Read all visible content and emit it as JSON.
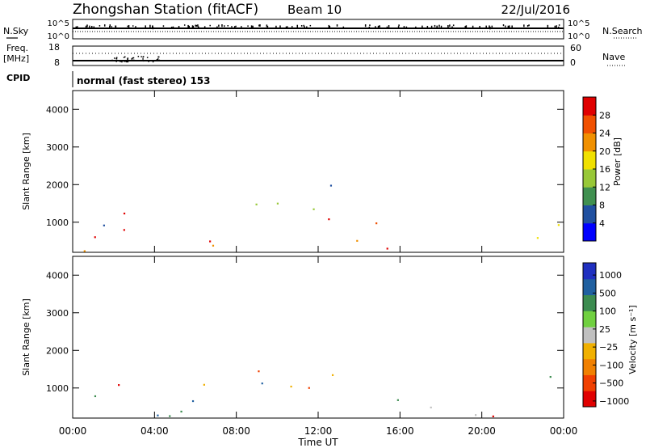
{
  "header": {
    "title": "Zhongshan Station (fitACF)",
    "beam": "Beam 10",
    "date": "22/Jul/2016"
  },
  "nsky_panel": {
    "left_label": "N.Sky",
    "right_label": "N.Search",
    "left_ticks": [
      "10^5",
      "10^0"
    ],
    "right_ticks": [
      "10^5",
      "10^0"
    ]
  },
  "freq_panel": {
    "left_label_1": "Freq.",
    "left_label_2": "[MHz]",
    "right_label": "Nave",
    "left_ticks": [
      "18",
      "8"
    ],
    "right_ticks": [
      "60",
      "0"
    ]
  },
  "cpid_panel": {
    "label": "CPID",
    "text": "normal (fast stereo) 153"
  },
  "colors": {
    "power_scale": [
      "#0000ff",
      "#2050a0",
      "#409050",
      "#98c838",
      "#f0e000",
      "#f09000",
      "#f05000",
      "#e00000"
    ],
    "velocity_scale": [
      "#e00000",
      "#f04000",
      "#f08000",
      "#f0b000",
      "#c0c0c0",
      "#70d040",
      "#3c8c50",
      "#2060a0",
      "#2030c0"
    ]
  },
  "chart_data": [
    {
      "type": "heatmap",
      "title": "Power",
      "ylabel": "Slant Range [km]",
      "xlabel": "Time UT",
      "x_ticks": [
        "00:00",
        "04:00",
        "08:00",
        "12:00",
        "16:00",
        "20:00",
        "00:00"
      ],
      "y_ticks": [
        "1000",
        "2000",
        "3000",
        "4000"
      ],
      "ylim": [
        200,
        4500
      ],
      "colorbar": {
        "label": "Power [dB]",
        "ticks": [
          "4",
          "8",
          "12",
          "16",
          "20",
          "24",
          "28"
        ]
      }
    },
    {
      "type": "heatmap",
      "title": "Velocity",
      "ylabel": "Slant Range [km]",
      "xlabel": "Time UT",
      "x_ticks": [
        "00:00",
        "04:00",
        "08:00",
        "12:00",
        "16:00",
        "20:00",
        "00:00"
      ],
      "y_ticks": [
        "1000",
        "2000",
        "3000",
        "4000"
      ],
      "ylim": [
        200,
        4500
      ],
      "colorbar": {
        "label": "Velocity [m s⁻¹]",
        "ticks": [
          "1000",
          "500",
          "100",
          "25",
          "−25",
          "−100",
          "−500",
          "−1000"
        ]
      }
    }
  ]
}
